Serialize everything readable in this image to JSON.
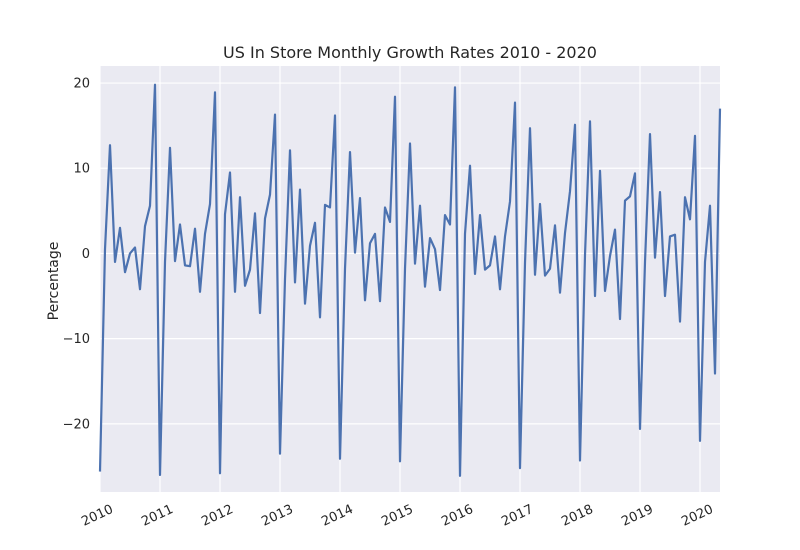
{
  "chart_data": {
    "type": "line",
    "title": "US In Store Monthly Growth Rates 2010 - 2020",
    "xlabel": "",
    "ylabel": "Percentage",
    "xlim": [
      "2010-01",
      "2020-05"
    ],
    "ylim": [
      -28,
      22
    ],
    "yticks": [
      20,
      10,
      0,
      -10,
      -20
    ],
    "ytick_labels": [
      "20",
      "10",
      "0",
      "−10",
      "−20"
    ],
    "xtick_labels": [
      "2010",
      "2011",
      "2012",
      "2013",
      "2014",
      "2015",
      "2016",
      "2017",
      "2018",
      "2019",
      "2020"
    ],
    "grid": true,
    "colors": {
      "line": "#4c72b0",
      "background": "#eaeaf2",
      "grid": "#ffffff"
    },
    "x": [
      "2010-01",
      "2010-02",
      "2010-03",
      "2010-04",
      "2010-05",
      "2010-06",
      "2010-07",
      "2010-08",
      "2010-09",
      "2010-10",
      "2010-11",
      "2010-12",
      "2011-01",
      "2011-02",
      "2011-03",
      "2011-04",
      "2011-05",
      "2011-06",
      "2011-07",
      "2011-08",
      "2011-09",
      "2011-10",
      "2011-11",
      "2011-12",
      "2012-01",
      "2012-02",
      "2012-03",
      "2012-04",
      "2012-05",
      "2012-06",
      "2012-07",
      "2012-08",
      "2012-09",
      "2012-10",
      "2012-11",
      "2012-12",
      "2013-01",
      "2013-02",
      "2013-03",
      "2013-04",
      "2013-05",
      "2013-06",
      "2013-07",
      "2013-08",
      "2013-09",
      "2013-10",
      "2013-11",
      "2013-12",
      "2014-01",
      "2014-02",
      "2014-03",
      "2014-04",
      "2014-05",
      "2014-06",
      "2014-07",
      "2014-08",
      "2014-09",
      "2014-10",
      "2014-11",
      "2014-12",
      "2015-01",
      "2015-02",
      "2015-03",
      "2015-04",
      "2015-05",
      "2015-06",
      "2015-07",
      "2015-08",
      "2015-09",
      "2015-10",
      "2015-11",
      "2015-12",
      "2016-01",
      "2016-02",
      "2016-03",
      "2016-04",
      "2016-05",
      "2016-06",
      "2016-07",
      "2016-08",
      "2016-09",
      "2016-10",
      "2016-11",
      "2016-12",
      "2017-01",
      "2017-02",
      "2017-03",
      "2017-04",
      "2017-05",
      "2017-06",
      "2017-07",
      "2017-08",
      "2017-09",
      "2017-10",
      "2017-11",
      "2017-12",
      "2018-01",
      "2018-02",
      "2018-03",
      "2018-04",
      "2018-05",
      "2018-06",
      "2018-07",
      "2018-08",
      "2018-09",
      "2018-10",
      "2018-11",
      "2018-12",
      "2019-01",
      "2019-02",
      "2019-03",
      "2019-04",
      "2019-05",
      "2019-06",
      "2019-07",
      "2019-08",
      "2019-09",
      "2019-10",
      "2019-11",
      "2019-12",
      "2020-01",
      "2020-02",
      "2020-03",
      "2020-04",
      "2020-05"
    ],
    "series": [
      {
        "values": [
          -25.6,
          0.5,
          12.7,
          -1.0,
          3.0,
          -2.2,
          0.0,
          0.7,
          -4.2,
          3.2,
          5.6,
          19.8,
          -26.0,
          -1.0,
          12.4,
          -0.9,
          3.4,
          -1.4,
          -1.5,
          2.9,
          -4.5,
          2.3,
          5.8,
          18.9,
          -25.8,
          4.6,
          9.5,
          -4.5,
          6.6,
          -3.8,
          -1.9,
          4.7,
          -7.0,
          4.1,
          6.9,
          16.3,
          -23.5,
          -3.0,
          12.1,
          -3.4,
          7.5,
          -5.9,
          0.9,
          3.6,
          -7.5,
          5.7,
          5.4,
          16.2,
          -24.1,
          -1.8,
          11.9,
          0.1,
          6.5,
          -5.5,
          1.2,
          2.3,
          -5.6,
          5.4,
          3.7,
          18.4,
          -24.4,
          -1.8,
          12.9,
          -1.2,
          5.6,
          -3.9,
          1.8,
          0.5,
          -4.3,
          4.5,
          3.4,
          19.5,
          -26.1,
          2.3,
          10.3,
          -2.4,
          4.5,
          -1.9,
          -1.4,
          2.0,
          -4.2,
          2.0,
          6.1,
          17.7,
          -25.2,
          -1.1,
          14.7,
          -2.5,
          5.8,
          -2.6,
          -1.8,
          3.3,
          -4.6,
          2.4,
          7.3,
          15.1,
          -24.3,
          -0.2,
          15.5,
          -5.0,
          9.7,
          -4.4,
          -0.3,
          2.8,
          -7.7,
          6.2,
          6.7,
          9.4,
          -20.6,
          -1.0,
          14.0,
          -0.5,
          7.2,
          -5.0,
          2.0,
          2.2,
          -8.0,
          6.6,
          4.0,
          13.8,
          -22.0,
          -1.0,
          5.6,
          -14.1,
          17.0
        ]
      }
    ]
  }
}
